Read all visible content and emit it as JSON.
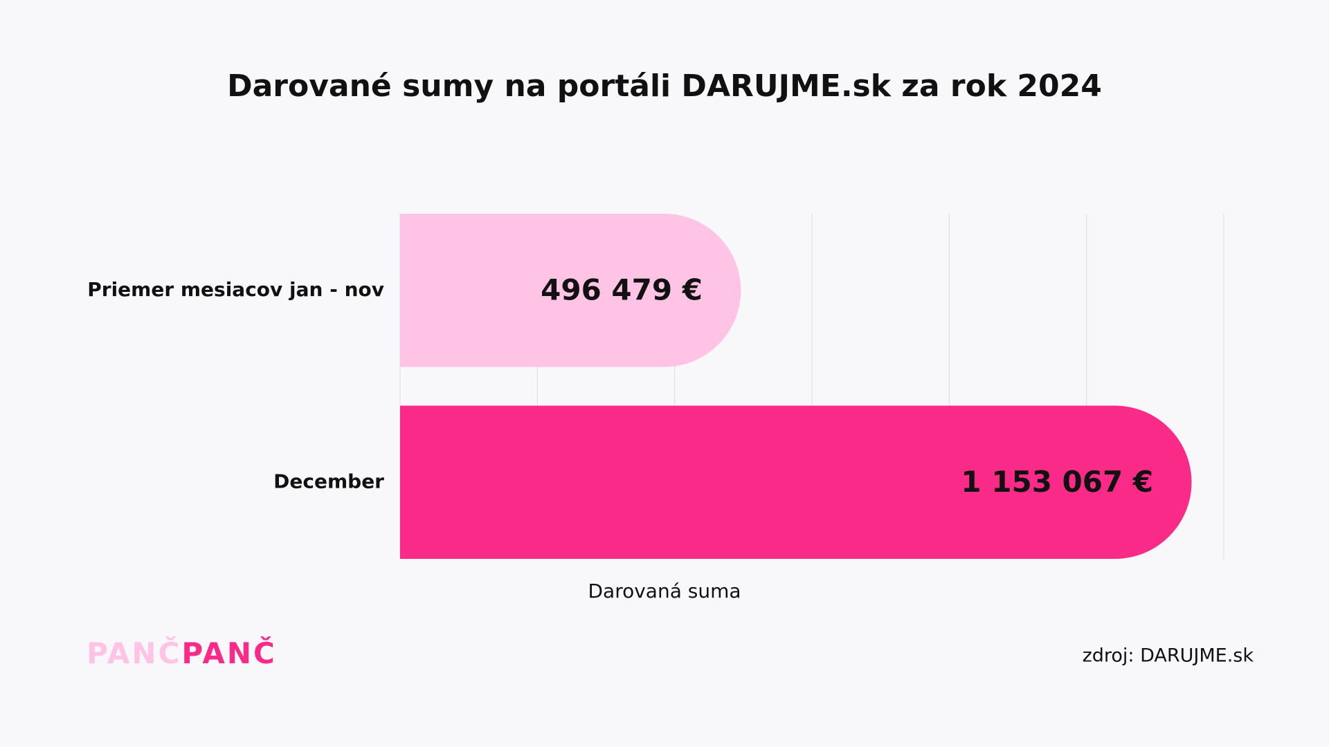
{
  "chart_data": {
    "type": "barh",
    "title": "Darované sumy na portáli DARUJME.sk za rok 2024",
    "categories": [
      "Priemer mesiacov jan - nov",
      "December"
    ],
    "values": [
      496479,
      1153067
    ],
    "value_labels": [
      "496 479 €",
      "1 153 067 €"
    ],
    "colors": [
      "#ffc3e6",
      "#f92a88"
    ],
    "label_colors": [
      "#111111",
      "#ffffff"
    ],
    "xlabel": "Darovaná suma",
    "xlim": [
      0,
      1200000
    ],
    "xticks": [
      0,
      200000,
      400000,
      600000,
      800000,
      1000000,
      1200000
    ],
    "grid": true
  },
  "logo": [
    {
      "text": "PANČ",
      "color": "#ffc3e6"
    },
    {
      "text": "PANČ",
      "color": "#f92a88"
    }
  ],
  "source": "zdroj: DARUJME.sk"
}
